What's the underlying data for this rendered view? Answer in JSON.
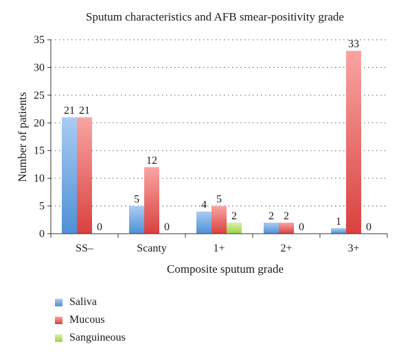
{
  "chart_data": {
    "type": "bar",
    "title": "Sputum characteristics and AFB smear-positivity grade",
    "xlabel": "Composite sputum grade",
    "ylabel": "Number of patients",
    "categories": [
      "SS–",
      "Scanty",
      "1+",
      "2+",
      "3+"
    ],
    "ylim": [
      0,
      35
    ],
    "yticks": [
      0,
      5,
      10,
      15,
      20,
      25,
      30,
      35
    ],
    "grid": "dotted horizontal",
    "legend_position": "bottom-left",
    "series": [
      {
        "name": "Saliva",
        "values": [
          21,
          5,
          4,
          2,
          1
        ],
        "color": "#4f8fd6",
        "color_light": "#a9ccf3"
      },
      {
        "name": "Mucous",
        "values": [
          21,
          12,
          5,
          2,
          33
        ],
        "color": "#d9413f",
        "color_light": "#f9a4a2"
      },
      {
        "name": "Sanguineous",
        "values": [
          0,
          0,
          2,
          0,
          0
        ],
        "color": "#9ed04a",
        "color_light": "#d9f2a4"
      }
    ]
  }
}
